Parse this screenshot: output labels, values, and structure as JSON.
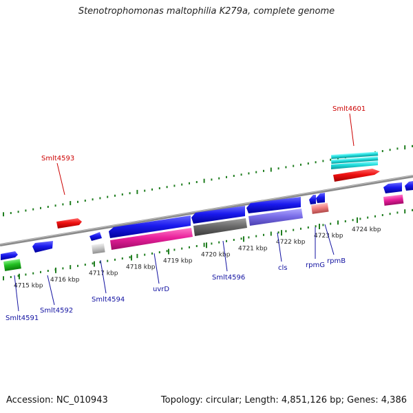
{
  "title": "Stenotrophomonas maltophilia K279a, complete genome",
  "footer": {
    "accession": "Accession: NC_010943",
    "summary": "Topology: circular; Length: 4,851,126 bp; Genes: 4,386"
  },
  "colors": {
    "backbone": "#8a8a8a",
    "dots": "#1e7d1e",
    "gene_label_blue": "#1010a0",
    "gene_label_red": "#cc0000"
  },
  "ticks": [
    {
      "label": "4715 kbp"
    },
    {
      "label": "4716 kbp"
    },
    {
      "label": "4717 kbp"
    },
    {
      "label": "4718 kbp"
    },
    {
      "label": "4719 kbp"
    },
    {
      "label": "4720 kbp"
    },
    {
      "label": "4721 kbp"
    },
    {
      "label": "4722 kbp"
    },
    {
      "label": "4723 kbp"
    },
    {
      "label": "4724 kbp"
    }
  ],
  "gene_labels": [
    {
      "name": "Smlt4601",
      "color": "red"
    },
    {
      "name": "Smlt4593",
      "color": "red"
    },
    {
      "name": "Smlt4591",
      "color": "blue"
    },
    {
      "name": "Smlt4592",
      "color": "blue"
    },
    {
      "name": "Smlt4594",
      "color": "blue"
    },
    {
      "name": "uvrD",
      "color": "blue"
    },
    {
      "name": "Smlt4596",
      "color": "blue"
    },
    {
      "name": "cls",
      "color": "blue"
    },
    {
      "name": "rpmG",
      "color": "blue"
    },
    {
      "name": "rpmB",
      "color": "blue"
    }
  ]
}
